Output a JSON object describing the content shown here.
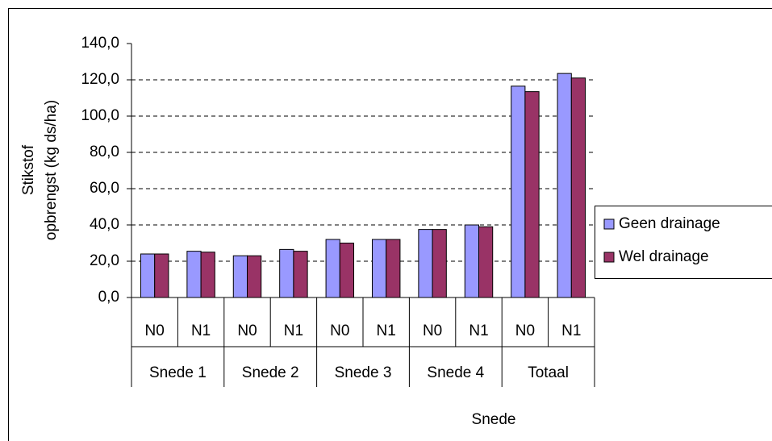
{
  "chart_data": {
    "type": "bar",
    "xlabel": "Snede",
    "ylabel": [
      "Stikstof",
      "opbrengst (kg ds/ha)"
    ],
    "categories": [
      "N0",
      "N1",
      "N0",
      "N1",
      "N0",
      "N1",
      "N0",
      "N1",
      "N0",
      "N1"
    ],
    "groups": [
      "Snede 1",
      "Snede 2",
      "Snede 3",
      "Snede 4",
      "Totaal"
    ],
    "series": [
      {
        "name": "Geen drainage",
        "color": "#9999ff",
        "values": [
          24,
          25.5,
          23,
          26.5,
          32,
          32,
          37.5,
          40,
          116.5,
          123.5
        ]
      },
      {
        "name": "Wel drainage",
        "color": "#993366",
        "values": [
          24,
          25,
          23,
          25.5,
          30,
          32,
          37.5,
          39,
          113.5,
          121
        ]
      }
    ],
    "ylim": [
      0,
      140
    ],
    "yticks": [
      {
        "value": 0,
        "label": "0,0"
      },
      {
        "value": 20,
        "label": "20,0"
      },
      {
        "value": 40,
        "label": "40,0"
      },
      {
        "value": 60,
        "label": "60,0"
      },
      {
        "value": 80,
        "label": "80,0"
      },
      {
        "value": 100,
        "label": "100,0"
      },
      {
        "value": 120,
        "label": "120,0"
      },
      {
        "value": 140,
        "label": "140,0"
      }
    ],
    "grid": true,
    "legend": "right"
  }
}
